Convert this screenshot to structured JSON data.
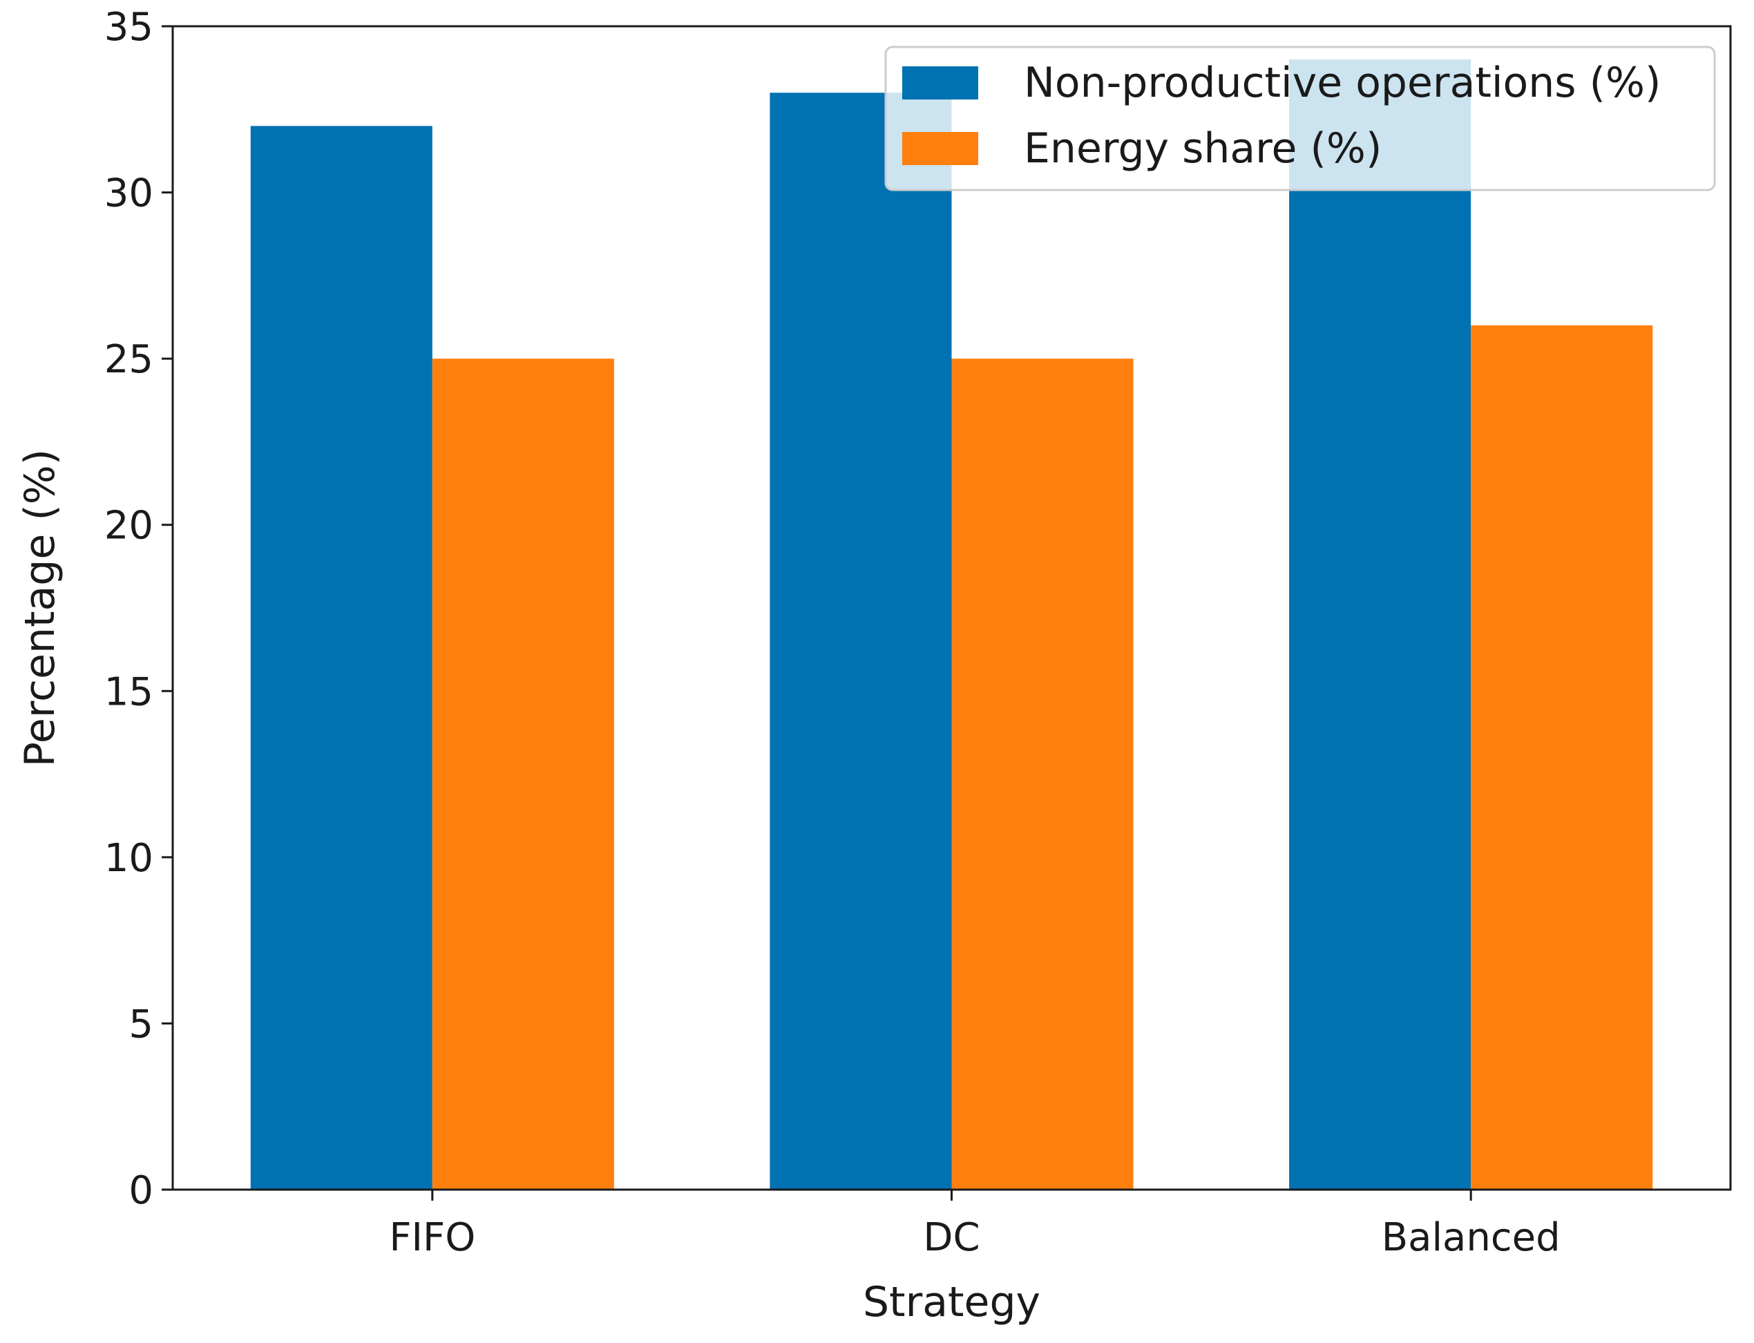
{
  "chart_data": {
    "type": "bar",
    "title": "",
    "xlabel": "Strategy",
    "ylabel": "Percentage (%)",
    "categories": [
      "FIFO",
      "DC",
      "Balanced"
    ],
    "series": [
      {
        "name": "Non-productive operations (%)",
        "values": [
          32,
          33,
          34
        ],
        "color": "#0072B2"
      },
      {
        "name": "Energy share (%)",
        "values": [
          25,
          25,
          26
        ],
        "color": "#FF7F0E"
      }
    ],
    "ylim": [
      0,
      35
    ],
    "yticks": [
      "0",
      "5",
      "10",
      "15",
      "20",
      "25",
      "30",
      "35"
    ],
    "grid": false,
    "legend_position": "top-right"
  }
}
